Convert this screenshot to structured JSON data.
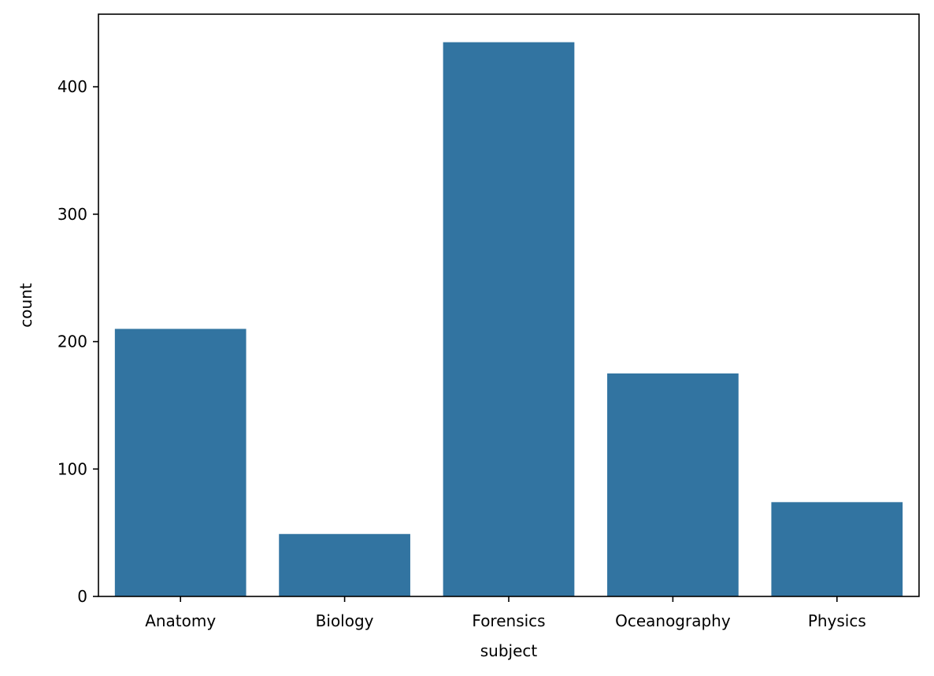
{
  "chart_data": {
    "type": "bar",
    "categories": [
      "Anatomy",
      "Biology",
      "Forensics",
      "Oceanography",
      "Physics"
    ],
    "values": [
      210,
      49,
      435,
      175,
      74
    ],
    "xlabel": "subject",
    "ylabel": "count",
    "ylim": [
      0,
      457
    ],
    "yticks": [
      0,
      100,
      200,
      300,
      400
    ],
    "grid": false,
    "bar_color": "#3274a1"
  }
}
